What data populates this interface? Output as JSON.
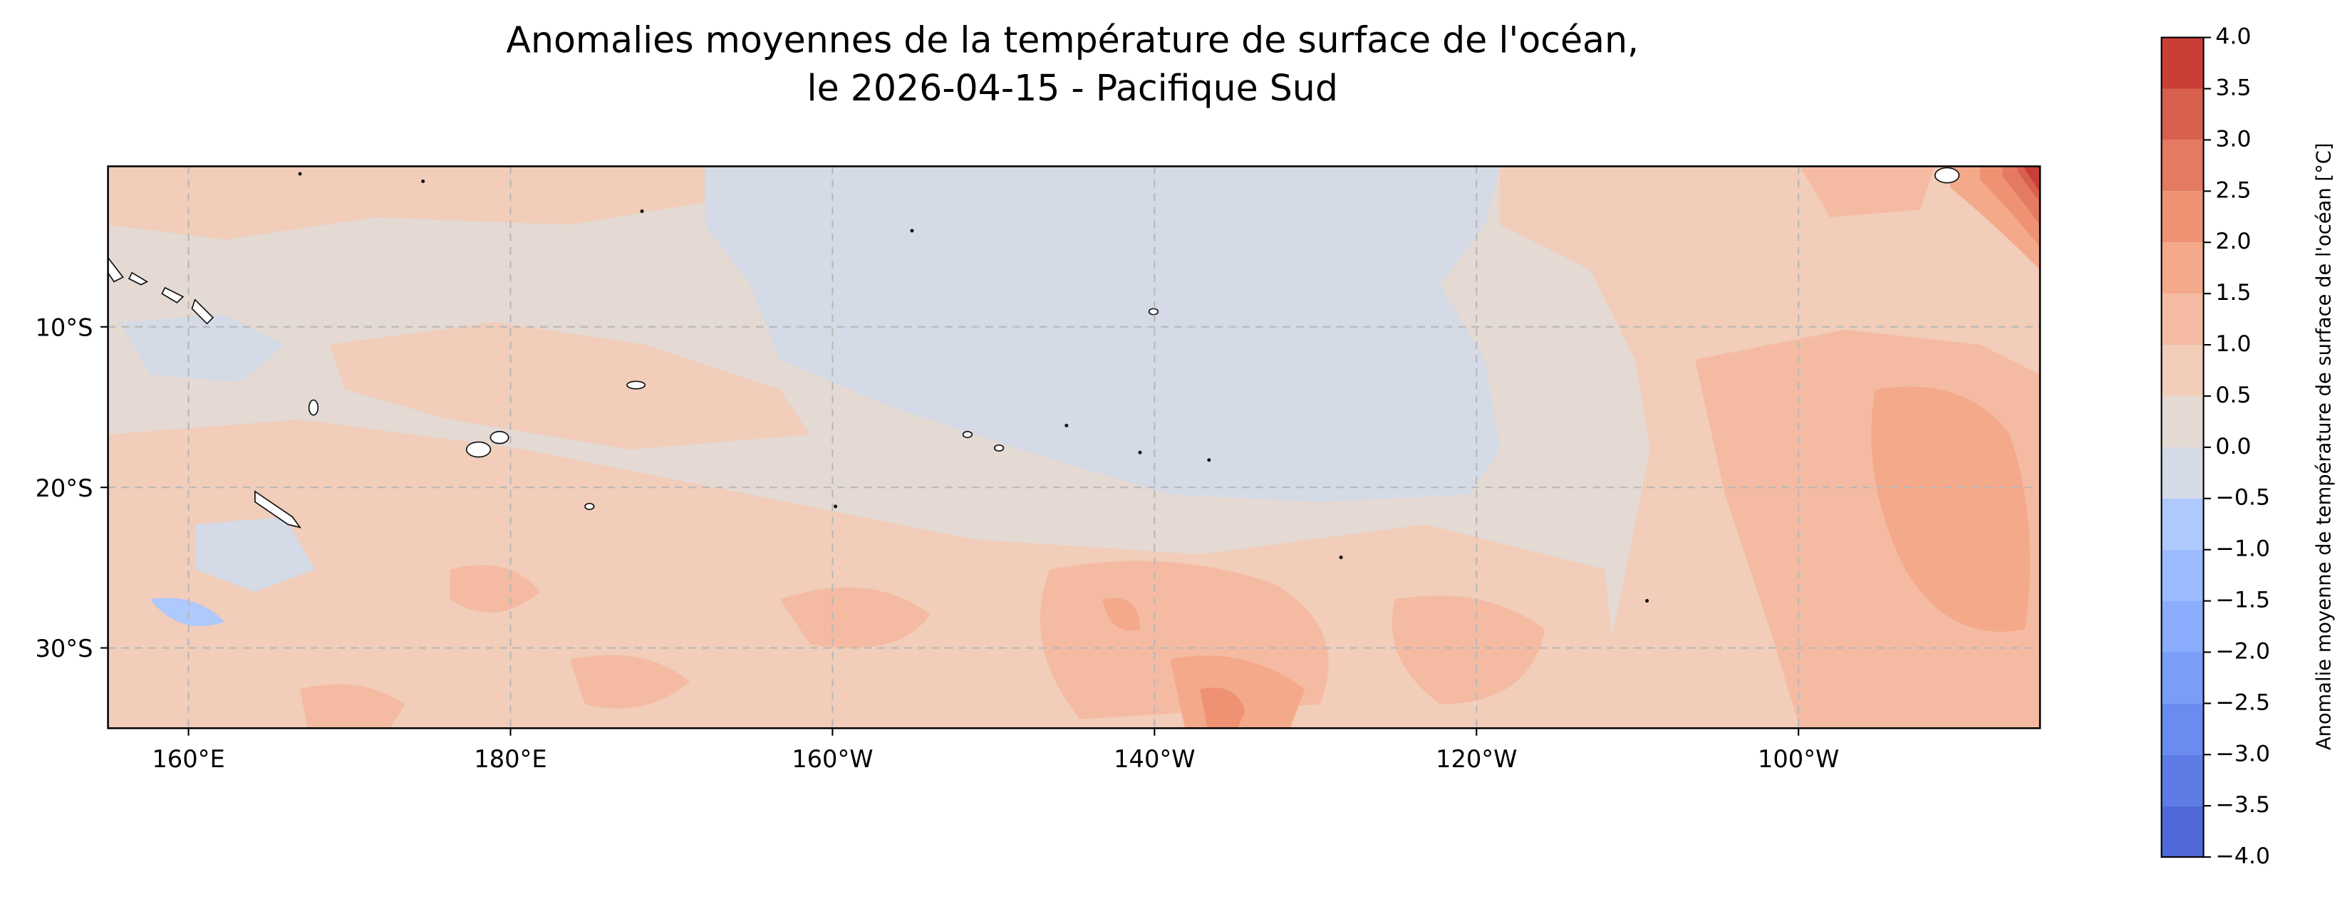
{
  "map": {
    "title": [
      "Anomalies moyennes de la température de surface de l'océan,",
      "le 2026-04-15 - Pacifique Sud"
    ],
    "lonlim": [
      155,
      275
    ],
    "latlim": [
      -35,
      0
    ],
    "lonticks": [
      {
        "value": 160,
        "label": "160°E"
      },
      {
        "value": 180,
        "label": "180°E"
      },
      {
        "value": 200,
        "label": "160°W"
      },
      {
        "value": 220,
        "label": "140°W"
      },
      {
        "value": 240,
        "label": "120°W"
      },
      {
        "value": 260,
        "label": "100°W"
      }
    ],
    "latticks": [
      {
        "value": -10,
        "label": "10°S"
      },
      {
        "value": -20,
        "label": "20°S"
      },
      {
        "value": -30,
        "label": "30°S"
      }
    ],
    "grid": true,
    "colorbar": {
      "label": "Anomalie moyenne de température de surface de l'océan [°C]",
      "ticks": [
        {
          "value": -4,
          "label": "−4.0"
        },
        {
          "value": -3.5,
          "label": "−3.5"
        },
        {
          "value": -3,
          "label": "−3.0"
        },
        {
          "value": -2.5,
          "label": "−2.5"
        },
        {
          "value": -2,
          "label": "−2.0"
        },
        {
          "value": -1.5,
          "label": "−1.5"
        },
        {
          "value": -1,
          "label": "−1.0"
        },
        {
          "value": -0.5,
          "label": "−0.5"
        },
        {
          "value": 0,
          "label": "0.0"
        },
        {
          "value": 0.5,
          "label": "0.5"
        },
        {
          "value": 1,
          "label": "1.0"
        },
        {
          "value": 1.5,
          "label": "1.5"
        },
        {
          "value": 2,
          "label": "2.0"
        },
        {
          "value": 2.5,
          "label": "2.5"
        },
        {
          "value": 3,
          "label": "3.0"
        },
        {
          "value": 3.5,
          "label": "3.5"
        },
        {
          "value": 4,
          "label": "4.0"
        }
      ],
      "colors": [
        "#4f69d9",
        "#5d7ce6",
        "#6a8bef",
        "#7a9df8",
        "#89acfd",
        "#9abbff",
        "#aec9fb",
        "#d4dae6",
        "#e4d9d3",
        "#f1cdba",
        "#f5bba2",
        "#f4a98b",
        "#ee9273",
        "#e57a62",
        "#d8604f",
        "#cb3e38"
      ]
    }
  }
}
